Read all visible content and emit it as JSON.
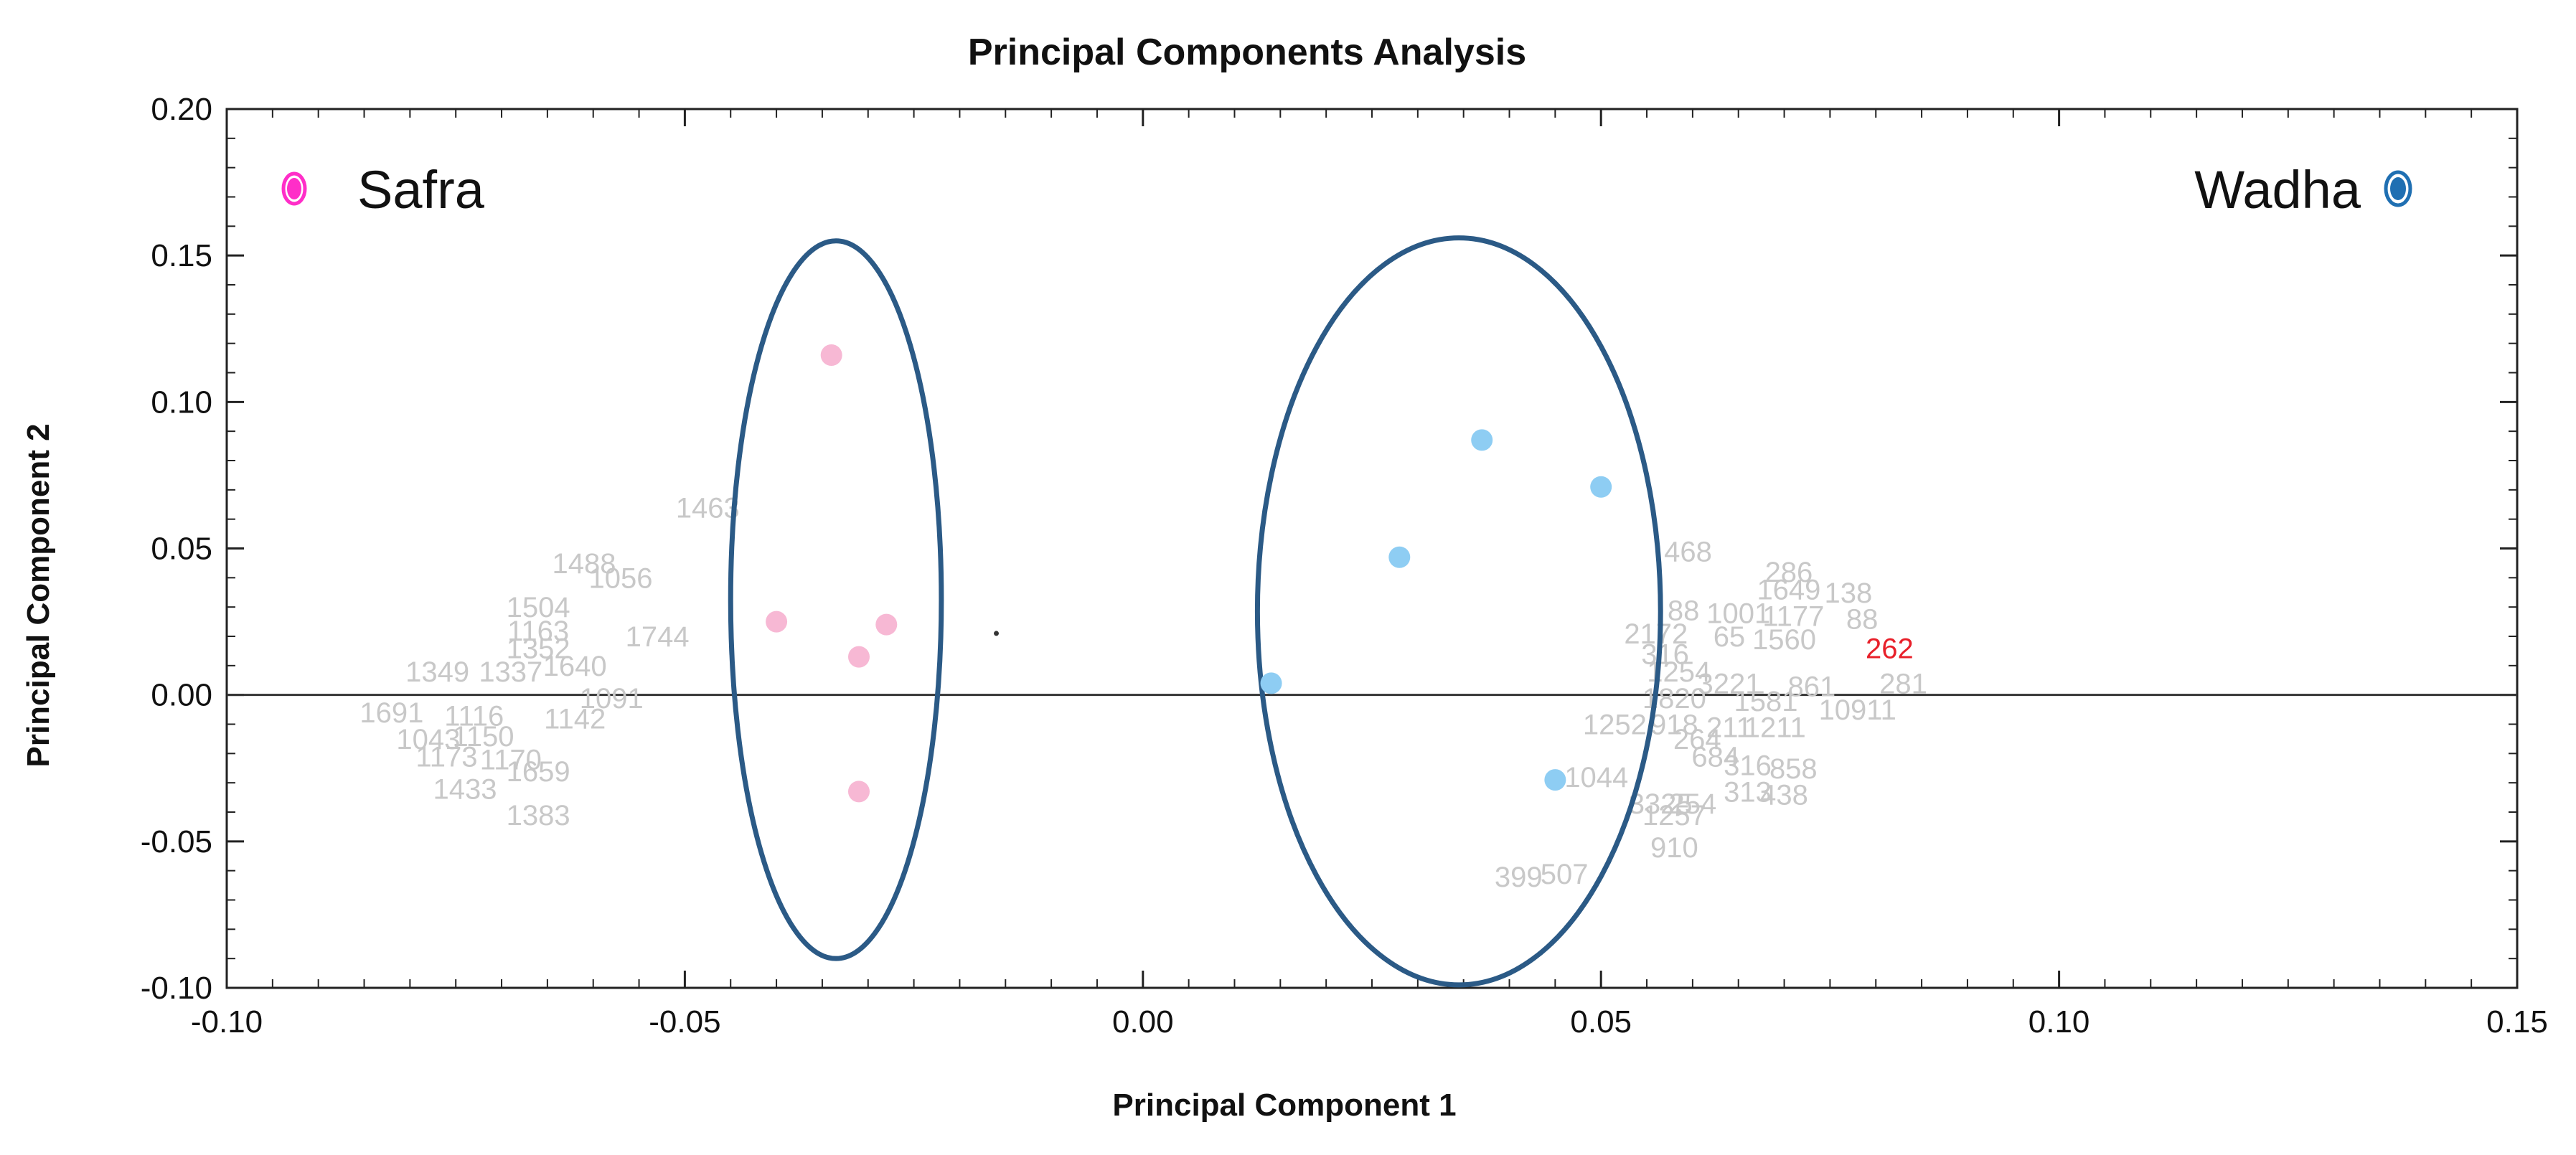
{
  "chart_data": {
    "type": "scatter",
    "title": "Principal Components Analysis",
    "xlabel": "Principal Component 1",
    "ylabel": "Principal Component 2",
    "xlim": [
      -0.1,
      0.15
    ],
    "ylim": [
      -0.1,
      0.2
    ],
    "xticks": [
      -0.1,
      -0.05,
      0.0,
      0.05,
      0.1,
      0.15
    ],
    "xtick_labels": [
      "-0.10",
      "-0.05",
      "0.00",
      "0.05",
      "0.10",
      "0.15"
    ],
    "yticks": [
      -0.1,
      -0.05,
      0.0,
      0.05,
      0.1,
      0.15,
      0.2
    ],
    "ytick_labels": [
      "-0.10",
      "-0.05",
      "0.00",
      "0.05",
      "0.10",
      "0.15",
      "0.20"
    ],
    "grid": false,
    "zero_line": true,
    "legend": [
      {
        "name": "Safra",
        "position": "top-left",
        "color": "#ff2ec8"
      },
      {
        "name": "Wadha",
        "position": "top-right",
        "color": "#1f6fb2"
      }
    ],
    "series": [
      {
        "name": "Safra",
        "color": "#f7b8d4",
        "points": [
          {
            "x": -0.034,
            "y": 0.116
          },
          {
            "x": -0.04,
            "y": 0.025
          },
          {
            "x": -0.028,
            "y": 0.024
          },
          {
            "x": -0.031,
            "y": 0.013
          },
          {
            "x": -0.031,
            "y": -0.033
          }
        ]
      },
      {
        "name": "Wadha",
        "color": "#8ecdf3",
        "points": [
          {
            "x": 0.037,
            "y": 0.087
          },
          {
            "x": 0.05,
            "y": 0.071
          },
          {
            "x": 0.028,
            "y": 0.047
          },
          {
            "x": 0.014,
            "y": 0.004
          },
          {
            "x": 0.045,
            "y": -0.029
          }
        ]
      }
    ],
    "group_ellipses": [
      {
        "group": "Safra",
        "cx": -0.0335,
        "cy": 0.0325,
        "rx": 0.0115,
        "ry": 0.1225,
        "color": "#2b5a86"
      },
      {
        "group": "Wadha",
        "cx": 0.0345,
        "cy": 0.0285,
        "rx": 0.022,
        "ry": 0.1275,
        "color": "#2b5a86"
      }
    ],
    "center_marker": {
      "x": -0.016,
      "y": 0.021
    },
    "variable_labels": [
      {
        "text": "1463",
        "x": -0.0475,
        "y": 0.064
      },
      {
        "text": "1488",
        "x": -0.061,
        "y": 0.045
      },
      {
        "text": "1056",
        "x": -0.057,
        "y": 0.04
      },
      {
        "text": "1504",
        "x": -0.066,
        "y": 0.03
      },
      {
        "text": "1744",
        "x": -0.053,
        "y": 0.02
      },
      {
        "text": "1163",
        "x": -0.066,
        "y": 0.022
      },
      {
        "text": "1352",
        "x": -0.066,
        "y": 0.016
      },
      {
        "text": "1349",
        "x": -0.077,
        "y": 0.008
      },
      {
        "text": "1337",
        "x": -0.069,
        "y": 0.008
      },
      {
        "text": "1640",
        "x": -0.062,
        "y": 0.01
      },
      {
        "text": "1091",
        "x": -0.058,
        "y": -0.001
      },
      {
        "text": "1691",
        "x": -0.082,
        "y": -0.006
      },
      {
        "text": "1116",
        "x": -0.073,
        "y": -0.007
      },
      {
        "text": "1142",
        "x": -0.062,
        "y": -0.008
      },
      {
        "text": "1043",
        "x": -0.078,
        "y": -0.015
      },
      {
        "text": "1150",
        "x": -0.072,
        "y": -0.014
      },
      {
        "text": "1173",
        "x": -0.076,
        "y": -0.021
      },
      {
        "text": "1170",
        "x": -0.069,
        "y": -0.022
      },
      {
        "text": "1433",
        "x": -0.074,
        "y": -0.032
      },
      {
        "text": "1659",
        "x": -0.066,
        "y": -0.026
      },
      {
        "text": "1383",
        "x": -0.066,
        "y": -0.041
      },
      {
        "text": "468",
        "x": 0.0595,
        "y": 0.049
      },
      {
        "text": "286",
        "x": 0.0705,
        "y": 0.042
      },
      {
        "text": "1649",
        "x": 0.0705,
        "y": 0.036
      },
      {
        "text": "138",
        "x": 0.077,
        "y": 0.035
      },
      {
        "text": "88",
        "x": 0.059,
        "y": 0.029
      },
      {
        "text": "1001",
        "x": 0.065,
        "y": 0.028
      },
      {
        "text": "1177",
        "x": 0.071,
        "y": 0.027
      },
      {
        "text": "88",
        "x": 0.0785,
        "y": 0.026
      },
      {
        "text": "2172",
        "x": 0.056,
        "y": 0.021
      },
      {
        "text": "65",
        "x": 0.064,
        "y": 0.02
      },
      {
        "text": "1560",
        "x": 0.07,
        "y": 0.019
      },
      {
        "text": "262",
        "x": 0.0815,
        "y": 0.016,
        "highlight": true
      },
      {
        "text": "316",
        "x": 0.057,
        "y": 0.014
      },
      {
        "text": "1254",
        "x": 0.0585,
        "y": 0.008
      },
      {
        "text": "3221",
        "x": 0.064,
        "y": 0.004
      },
      {
        "text": "861",
        "x": 0.073,
        "y": 0.003
      },
      {
        "text": "281",
        "x": 0.083,
        "y": 0.004
      },
      {
        "text": "1820",
        "x": 0.058,
        "y": -0.001
      },
      {
        "text": "1581",
        "x": 0.068,
        "y": -0.002
      },
      {
        "text": "10911",
        "x": 0.078,
        "y": -0.005
      },
      {
        "text": "1252",
        "x": 0.0515,
        "y": -0.01
      },
      {
        "text": "918",
        "x": 0.058,
        "y": -0.01
      },
      {
        "text": "211",
        "x": 0.064,
        "y": -0.011
      },
      {
        "text": "1211",
        "x": 0.069,
        "y": -0.011
      },
      {
        "text": "264",
        "x": 0.0605,
        "y": -0.015
      },
      {
        "text": "684",
        "x": 0.0625,
        "y": -0.021
      },
      {
        "text": "316",
        "x": 0.066,
        "y": -0.024
      },
      {
        "text": "858",
        "x": 0.071,
        "y": -0.025
      },
      {
        "text": "1044",
        "x": 0.0495,
        "y": -0.028
      },
      {
        "text": "313",
        "x": 0.066,
        "y": -0.033
      },
      {
        "text": "438",
        "x": 0.07,
        "y": -0.034
      },
      {
        "text": "3325",
        "x": 0.0565,
        "y": -0.037
      },
      {
        "text": "254",
        "x": 0.06,
        "y": -0.037
      },
      {
        "text": "1257",
        "x": 0.058,
        "y": -0.041
      },
      {
        "text": "910",
        "x": 0.058,
        "y": -0.052
      },
      {
        "text": "399",
        "x": 0.041,
        "y": -0.062
      },
      {
        "text": "507",
        "x": 0.046,
        "y": -0.061
      }
    ]
  }
}
